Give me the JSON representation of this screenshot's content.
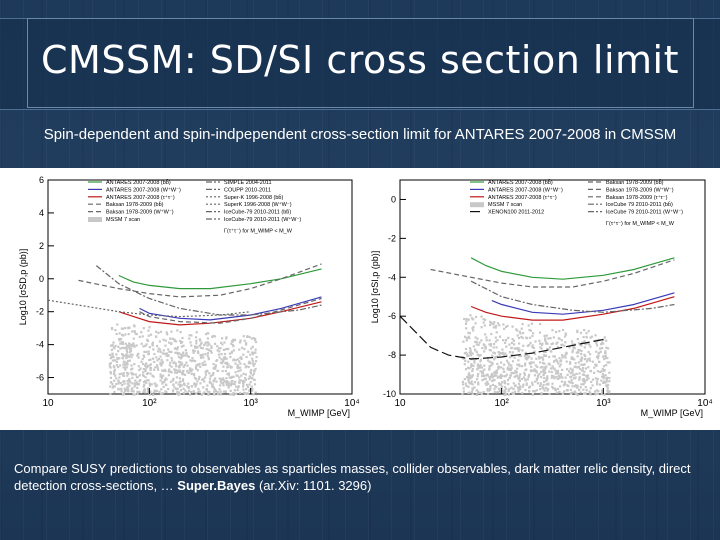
{
  "slide": {
    "title": "CMSSM: SD/SI cross section limit",
    "subtitle": "Spin-dependent and spin-indpependent cross-section limit for ANTARES 2007-2008 in CMSSM",
    "caption_text": "Compare SUSY predictions to observables as sparticles masses, collider observables, dark matter relic density, direct detection cross-sections, … ",
    "caption_bold": "Super.Bayes",
    "caption_ref": " (ar.Xiv: 1101. 3296)"
  },
  "colors": {
    "antares_bb": "#2e9a3a",
    "antares_ww": "#3a3ab8",
    "antares_tau": "#c01818",
    "scan": "#c8c8c8"
  },
  "chart_data": [
    {
      "type": "line",
      "xlabel": "M_WIMP [GeV]",
      "ylabel": "Log10 [σSD,p (pb)]",
      "xscale": "log",
      "xlim": [
        10,
        10000
      ],
      "ylim": [
        -7,
        6
      ],
      "x_ticks": [
        "10",
        "10²",
        "10³",
        "10⁴"
      ],
      "y_ticks": [
        "-6",
        "-4",
        "-2",
        "0",
        "2",
        "4",
        "6"
      ],
      "legend": [
        "ANTARES 2007-2008 (bb̄)",
        "ANTARES 2007-2008 (W⁺W⁻)",
        "ANTARES 2007-2008 (τ⁺τ⁻)",
        "Baksan 1978-2009 (bb̄)",
        "Baksan 1978-2009 (W⁺W⁻)",
        "MSSM 7 scan",
        "SIMPLE 2004-2011",
        "COUPP 2010-2011",
        "Super-K 1996-2008 (bb̄)",
        "SuperK 1996-2008 (W⁺W⁻)",
        "IceCube-79 2010-2011 (bb̄)",
        "IceCube-79 2010-2011 (W⁺W⁻)"
      ],
      "legend_note": "Γ(τ⁺τ⁻) for M_WIMP < M_W",
      "series": [
        {
          "name": "ANTARES 2007-2008 (bb̄)",
          "x": [
            50,
            70,
            100,
            200,
            400,
            1000,
            2000,
            5000
          ],
          "y": [
            0.2,
            -0.2,
            -0.4,
            -0.6,
            -0.6,
            -0.3,
            0.0,
            0.6
          ]
        },
        {
          "name": "ANTARES 2007-2008 (W⁺W⁻)",
          "x": [
            80,
            100,
            200,
            400,
            1000,
            2000,
            5000
          ],
          "y": [
            -1.8,
            -2.1,
            -2.4,
            -2.5,
            -2.2,
            -1.8,
            -1.1
          ]
        },
        {
          "name": "ANTARES 2007-2008 (τ⁺τ⁻)",
          "x": [
            50,
            70,
            100,
            200,
            400,
            1000,
            2000,
            5000
          ],
          "y": [
            -2.0,
            -2.3,
            -2.6,
            -2.8,
            -2.7,
            -2.4,
            -2.0,
            -1.4
          ]
        },
        {
          "name": "Baksan 1978-2009 (bb̄)",
          "x": [
            20,
            50,
            100,
            200,
            500,
            1000,
            2000,
            5000
          ],
          "y": [
            -0.1,
            -0.6,
            -0.9,
            -1.1,
            -1.0,
            -0.6,
            0.0,
            0.9
          ]
        },
        {
          "name": "Baksan 1978-2009 (W⁺W⁻)",
          "x": [
            80,
            100,
            200,
            500,
            1000,
            2000,
            5000
          ],
          "y": [
            -2.0,
            -2.3,
            -2.6,
            -2.7,
            -2.4,
            -1.9,
            -1.2
          ]
        },
        {
          "name": "Super-K 1996-2008 (bb̄)",
          "x": [
            10,
            20,
            50,
            100,
            200,
            500,
            1000
          ],
          "y": [
            -1.3,
            -1.6,
            -2.0,
            -2.2,
            -2.3,
            -2.2,
            -2.0
          ]
        },
        {
          "name": "IceCube-79 2010-2011 (bb̄)",
          "x": [
            30,
            50,
            100,
            200,
            500,
            1000,
            3000,
            5000
          ],
          "y": [
            0.8,
            -0.3,
            -1.2,
            -1.8,
            -2.2,
            -2.2,
            -1.9,
            -1.6
          ]
        }
      ]
    },
    {
      "type": "line",
      "xlabel": "M_WIMP [GeV]",
      "ylabel": "Log10 [σSI,p (pb)]",
      "xscale": "log",
      "xlim": [
        10,
        10000
      ],
      "ylim": [
        -10,
        1
      ],
      "x_ticks": [
        "10",
        "10²",
        "10³",
        "10⁴"
      ],
      "y_ticks": [
        "-10",
        "-8",
        "-6",
        "-4",
        "-2",
        "0"
      ],
      "legend": [
        "ANTARES 2007-2008 (bb̄)",
        "ANTARES 2007-2008 (W⁺W⁻)",
        "ANTARES 2007-2008 (τ⁺τ⁻)",
        "MSSM 7 scan",
        "XENON100 2011-2012",
        "Baksan 1978-2009 (bb̄)",
        "Baksan 1978-2009 (W⁺W⁻)",
        "Baksan 1978-2009 (τ⁺τ⁻)",
        "IceCube 79 2010-2011 (bb̄)",
        "IceCube 79 2010-2011 (W⁺W⁻)"
      ],
      "legend_note": "Γ(τ⁺τ⁻) for M_WIMP < M_W",
      "series": [
        {
          "name": "ANTARES 2007-2008 (bb̄)",
          "x": [
            50,
            70,
            100,
            200,
            400,
            1000,
            2000,
            5000
          ],
          "y": [
            -3.0,
            -3.4,
            -3.7,
            -4.0,
            -4.1,
            -3.9,
            -3.6,
            -3.0
          ]
        },
        {
          "name": "ANTARES 2007-2008 (W⁺W⁻)",
          "x": [
            80,
            100,
            200,
            400,
            1000,
            2000,
            5000
          ],
          "y": [
            -5.2,
            -5.4,
            -5.8,
            -5.9,
            -5.7,
            -5.4,
            -4.8
          ]
        },
        {
          "name": "ANTARES 2007-2008 (τ⁺τ⁻)",
          "x": [
            50,
            70,
            100,
            200,
            400,
            1000,
            2000,
            5000
          ],
          "y": [
            -5.5,
            -5.8,
            -6.0,
            -6.2,
            -6.2,
            -5.9,
            -5.6,
            -5.0
          ]
        },
        {
          "name": "XENON100 2011-2012",
          "x": [
            10,
            20,
            30,
            50,
            100,
            200,
            500,
            1000
          ],
          "y": [
            -6.0,
            -7.6,
            -8.0,
            -8.2,
            -8.1,
            -7.9,
            -7.5,
            -7.2
          ]
        },
        {
          "name": "Baksan 1978-2009 (bb̄)",
          "x": [
            20,
            50,
            100,
            200,
            500,
            1000,
            2000,
            5000
          ],
          "y": [
            -3.6,
            -4.0,
            -4.3,
            -4.5,
            -4.5,
            -4.2,
            -3.8,
            -3.1
          ]
        },
        {
          "name": "IceCube 79 2010-2011 (W⁺W⁻)",
          "x": [
            50,
            100,
            200,
            500,
            1000,
            3000,
            5000
          ],
          "y": [
            -4.2,
            -5.0,
            -5.4,
            -5.7,
            -5.8,
            -5.6,
            -5.4
          ]
        }
      ]
    }
  ]
}
